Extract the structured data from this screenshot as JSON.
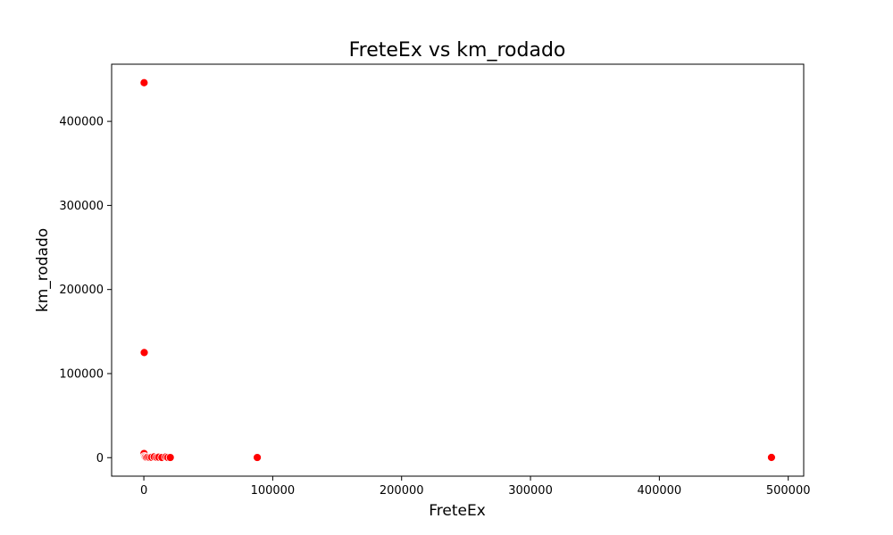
{
  "chart_data": {
    "type": "scatter",
    "title": "FreteEx vs km_rodado",
    "xlabel": "FreteEx",
    "ylabel": "km_rodado",
    "xlim": [
      -25000,
      512000
    ],
    "ylim": [
      -22000,
      468000
    ],
    "x_ticks": [
      0,
      100000,
      200000,
      300000,
      400000,
      500000
    ],
    "y_ticks": [
      0,
      100000,
      200000,
      300000,
      400000
    ],
    "grid": false,
    "marker_color": "#ff0000",
    "marker_edge_color": "#ffffff",
    "points": [
      {
        "x": 200,
        "y": 446000
      },
      {
        "x": 300,
        "y": 125000
      },
      {
        "x": 150,
        "y": 5000
      },
      {
        "x": 400,
        "y": 1500
      },
      {
        "x": 800,
        "y": 500
      },
      {
        "x": 1200,
        "y": 800
      },
      {
        "x": 2000,
        "y": 300
      },
      {
        "x": 3000,
        "y": 600
      },
      {
        "x": 4500,
        "y": 200
      },
      {
        "x": 6000,
        "y": 400
      },
      {
        "x": 8000,
        "y": 900
      },
      {
        "x": 10000,
        "y": 300
      },
      {
        "x": 11500,
        "y": 500
      },
      {
        "x": 14000,
        "y": 200
      },
      {
        "x": 17000,
        "y": 800
      },
      {
        "x": 18500,
        "y": 300
      },
      {
        "x": 20500,
        "y": 200
      },
      {
        "x": 88000,
        "y": 200
      },
      {
        "x": 487000,
        "y": 300
      }
    ]
  }
}
